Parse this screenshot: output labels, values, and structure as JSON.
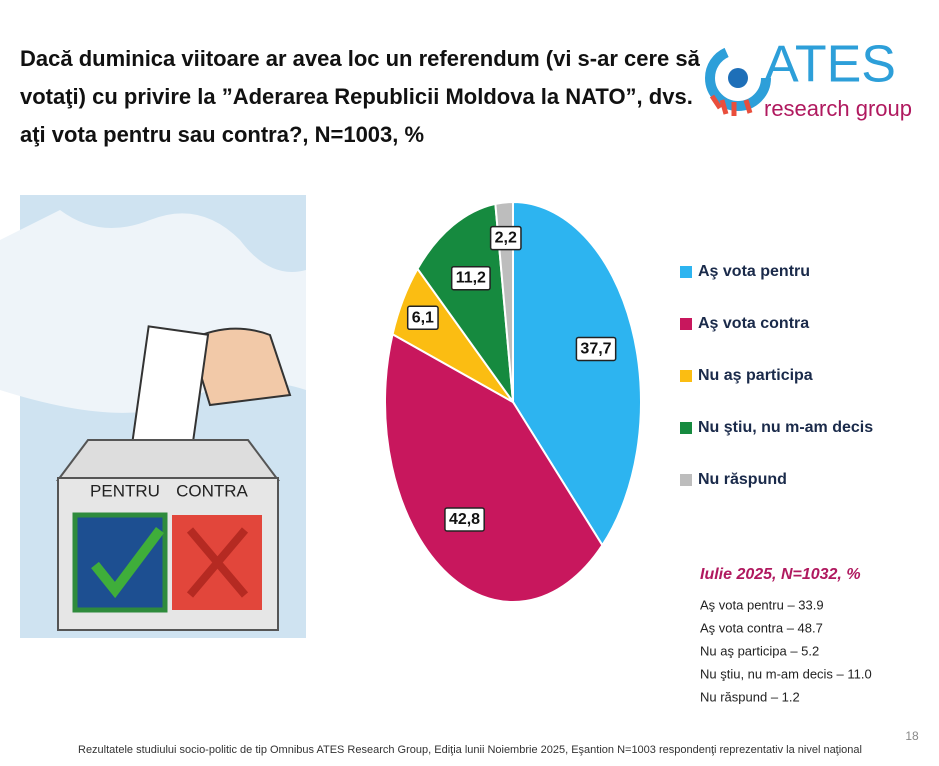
{
  "chart_data": {
    "type": "pie",
    "title": [
      "Dacă duminica viitoare ar avea loc un referendum (vi s-ar cere să",
      "votaţi) cu privire la ”Aderarea Republicii Moldova la NATO”, dvs.",
      "aţi vota pentru sau contra?, N=1003, %"
    ],
    "categories": [
      "Aş vota pentru",
      "Aş vota contra",
      "Nu aş participa",
      "Nu ştiu, nu m-am decis",
      "Nu răspund"
    ],
    "values": [
      37.7,
      42.8,
      6.1,
      11.2,
      2.2
    ],
    "value_labels": [
      "37,7",
      "42,8",
      "6,1",
      "11,2",
      "2,2"
    ],
    "colors": [
      "#2db4f0",
      "#c8175d",
      "#fbbd12",
      "#168a3f",
      "#bdbdbd"
    ],
    "legend": "right"
  },
  "comparison": {
    "title": "Iulie 2025, N=1032, %",
    "items": [
      "Aş vota pentru – 33.9",
      "Aş vota contra – 48.7",
      "Nu aş participa – 5.2",
      "Nu ştiu, nu m-am decis – 11.0",
      "Nu răspund – 1.2"
    ]
  },
  "logo": {
    "name": "ATES",
    "subtitle": "research group"
  },
  "illustration": {
    "left": "PENTRU",
    "right": "CONTRA"
  },
  "footer": "Rezultatele studiului socio-politic de tip Omnibus ATES Research Group, Ediţia lunii Noiembrie 2025, Eşantion N=1003 respondenţi reprezentativ la nivel naţional",
  "page_number": "18"
}
